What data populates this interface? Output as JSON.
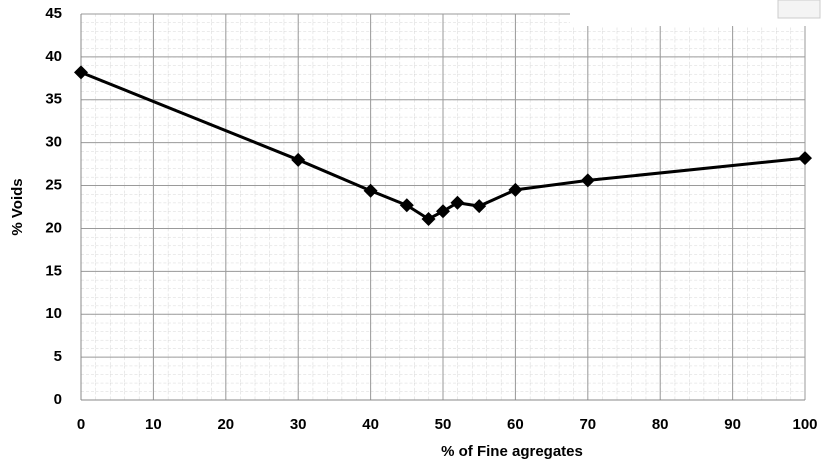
{
  "chart_data": {
    "type": "line",
    "x_label": "% of Fine agregates",
    "y_label": "% Voids",
    "x": [
      0,
      30,
      40,
      45,
      48,
      50,
      52,
      55,
      60,
      70,
      100
    ],
    "series": [
      {
        "color": "#000000",
        "values": [
          38.2,
          28,
          24.4,
          22.7,
          21.1,
          22,
          23,
          22.6,
          24.5,
          25.6,
          28.2
        ]
      }
    ],
    "xlim": [
      0,
      100
    ],
    "xticks": [
      0,
      10,
      20,
      30,
      40,
      50,
      60,
      70,
      80,
      90,
      100
    ],
    "ylim": [
      0,
      45
    ],
    "yticks": [
      0,
      5,
      10,
      15,
      20,
      25,
      30,
      35,
      40,
      45
    ],
    "grid": true
  }
}
